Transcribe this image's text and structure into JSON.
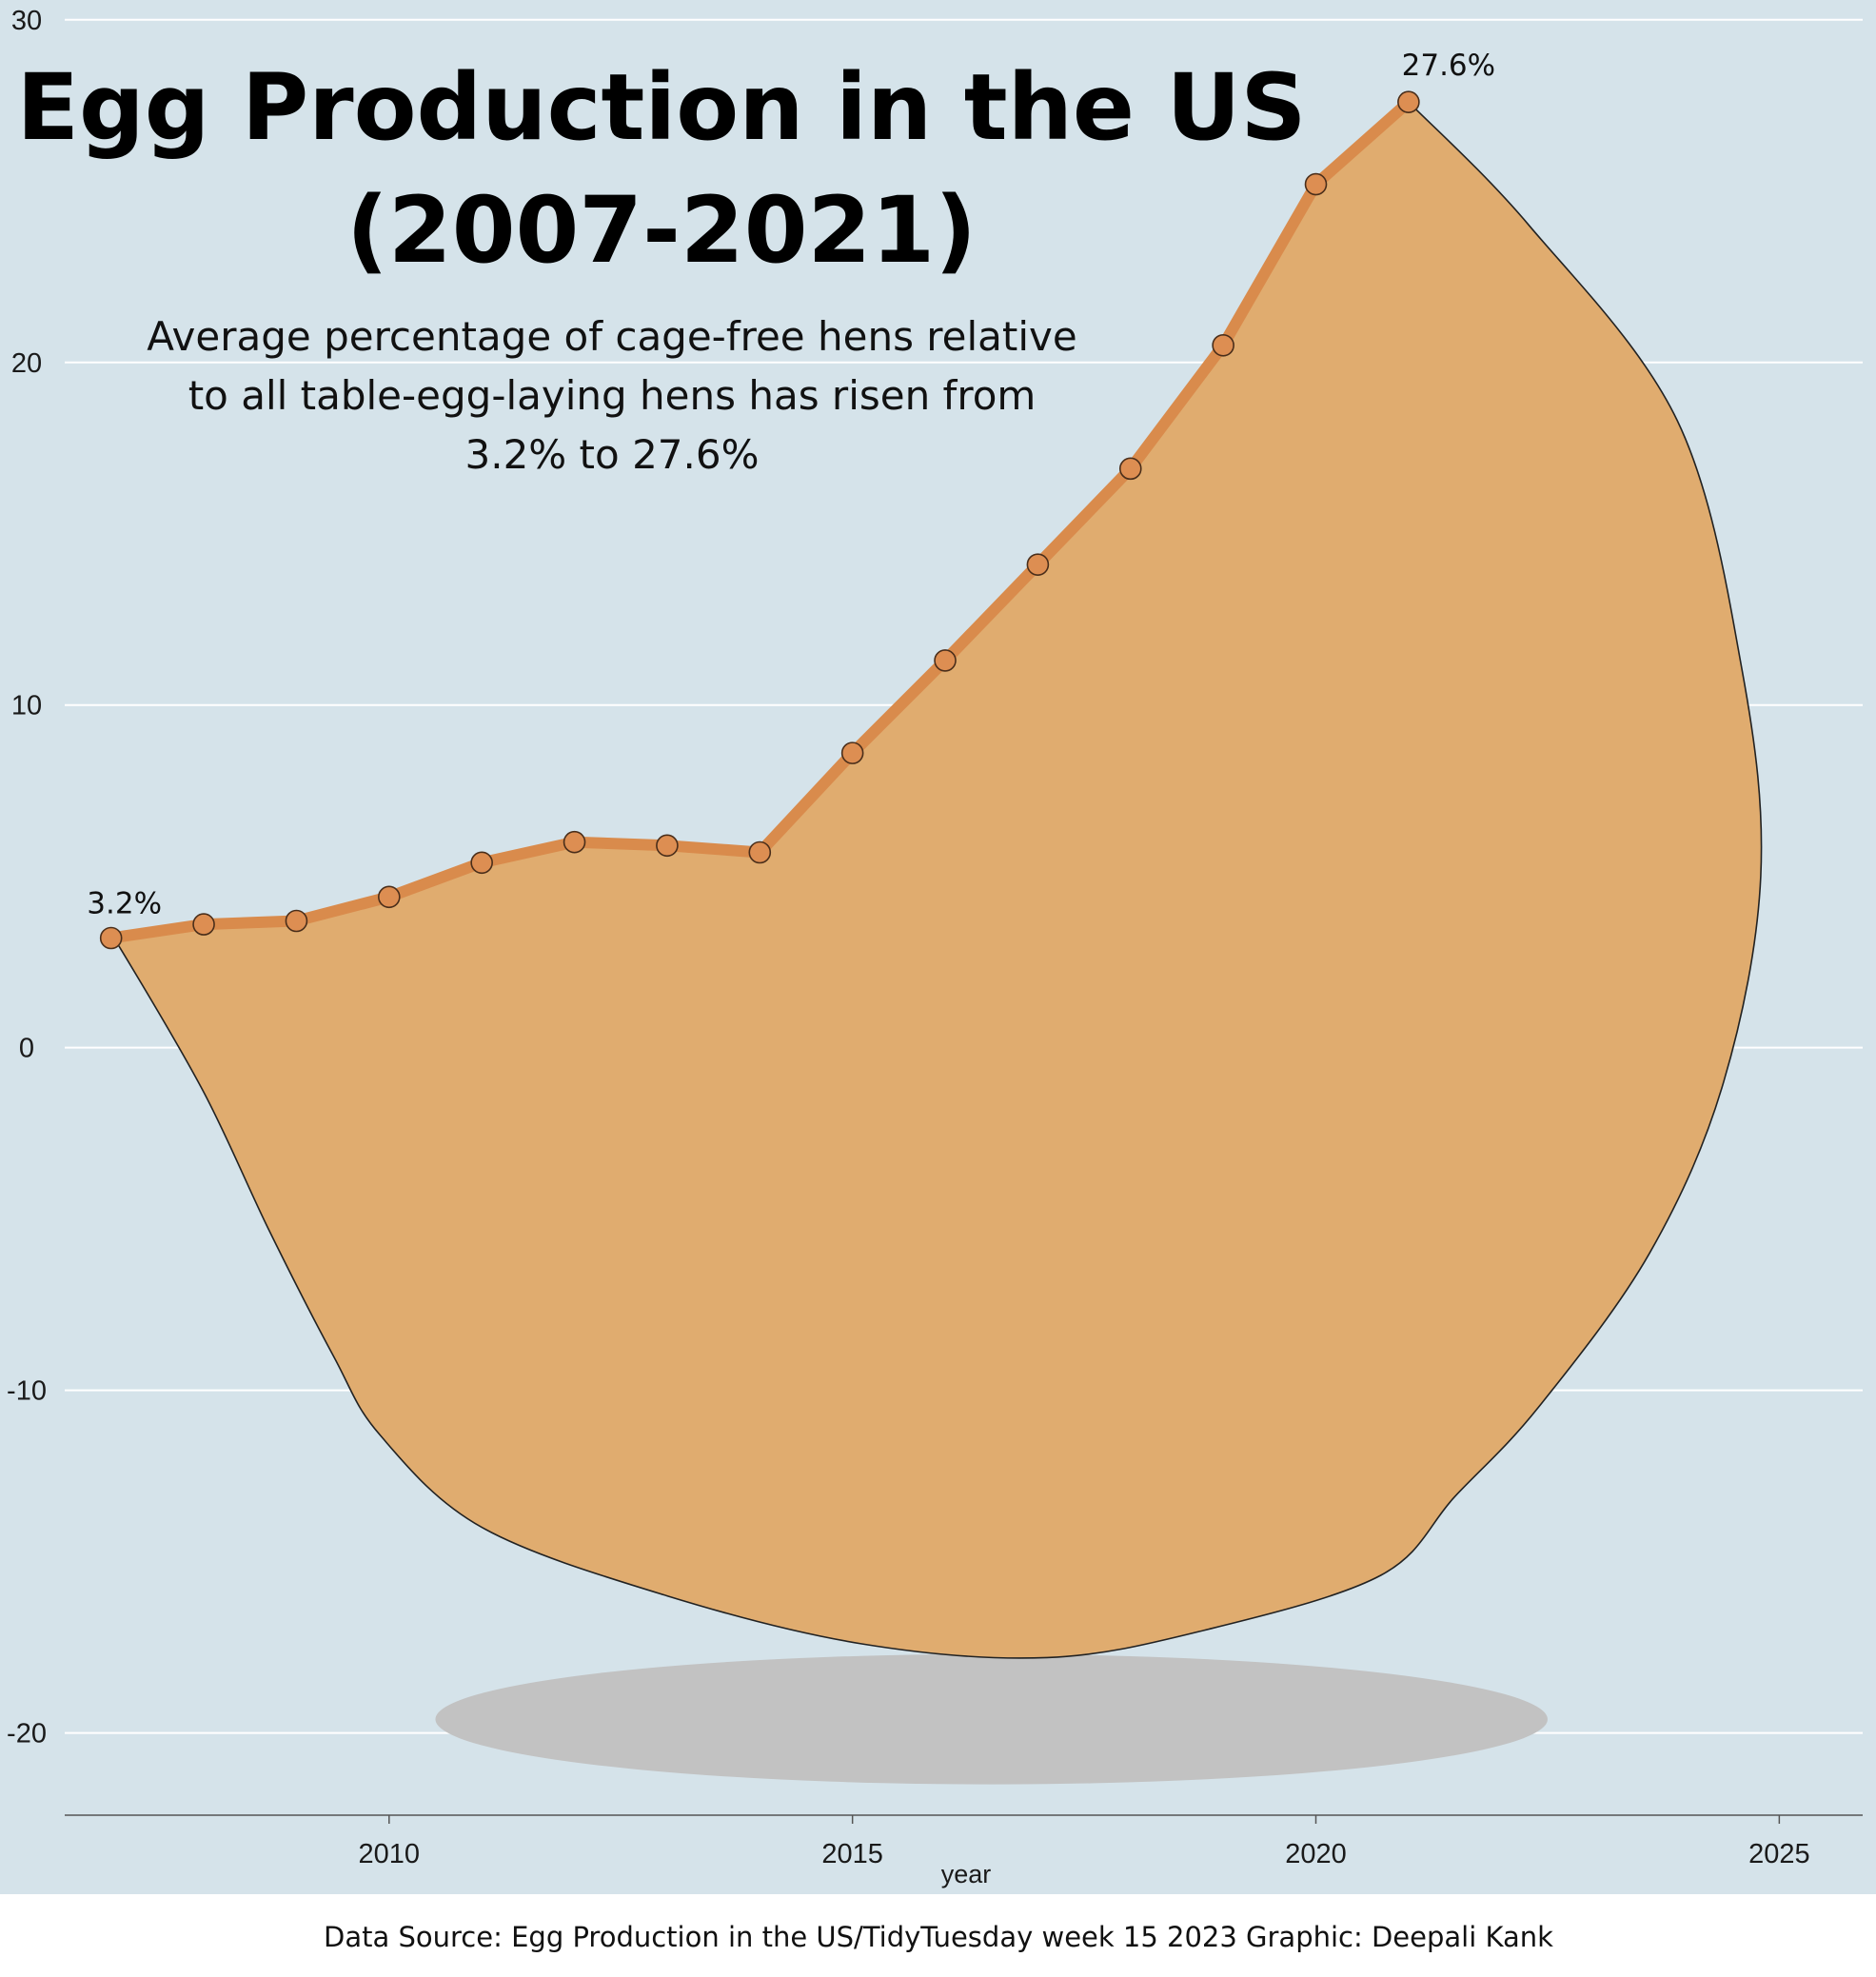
{
  "chart_data": {
    "type": "line",
    "title_line1": "Egg Production in the US",
    "title_line2": "(2007-2021)",
    "subtitle_line1": "Average percentage of cage-free hens relative",
    "subtitle_line2": "to all table-egg-laying hens has risen from",
    "subtitle_line3": "3.2% to 27.6%",
    "xlabel": "year",
    "ylabel": "",
    "x_ticks": [
      2010,
      2015,
      2020,
      2025
    ],
    "y_ticks": [
      -20,
      -10,
      0,
      10,
      20,
      30
    ],
    "xlim": [
      2006.5,
      2025.9
    ],
    "ylim": [
      -22.4,
      30.3
    ],
    "grid": "horizontal",
    "x": [
      2007,
      2008,
      2009,
      2010,
      2011,
      2012,
      2013,
      2014,
      2015,
      2016,
      2017,
      2018,
      2019,
      2020,
      2021
    ],
    "y": [
      3.2,
      3.6,
      3.7,
      4.4,
      5.4,
      6.0,
      5.9,
      5.7,
      8.6,
      11.3,
      14.1,
      16.9,
      20.5,
      25.2,
      27.6
    ],
    "first_label": "3.2%",
    "last_label": "27.6%",
    "egg_outline": [
      [
        2021,
        27.6
      ],
      [
        2022.3,
        24
      ],
      [
        2023.9,
        18.3
      ],
      [
        2024.6,
        11
      ],
      [
        2024.8,
        5
      ],
      [
        2024.4,
        -1
      ],
      [
        2023.6,
        -6
      ],
      [
        2022.4,
        -10.5
      ],
      [
        2021.5,
        -13.1
      ],
      [
        2020.7,
        -15.4
      ],
      [
        2018.8,
        -17.0
      ],
      [
        2017.1,
        -17.8
      ],
      [
        2015.1,
        -17.4
      ],
      [
        2013,
        -16.0
      ],
      [
        2011,
        -14.0
      ],
      [
        2009.9,
        -11.3
      ],
      [
        2009.4,
        -9.0
      ],
      [
        2008.7,
        -5.3
      ],
      [
        2008,
        -1.3
      ],
      [
        2007.1,
        2.9
      ],
      [
        2007,
        3.2
      ]
    ],
    "shadow": {
      "center": [
        2016.5,
        -19.6
      ],
      "radius_x": 6.0,
      "radius_y": 1.9
    },
    "colors": {
      "background": "#d5e3ea",
      "egg_fill": "#e0ac6f",
      "line": "#d98b4c",
      "point_fill": "#dd8e52",
      "shadow": "#c2c2c2",
      "grid": "#ffffff",
      "outline": "#222222"
    }
  },
  "caption": "Data Source:  Egg Production in the US/TidyTuesday week  15 2023     Graphic: Deepali Kank"
}
